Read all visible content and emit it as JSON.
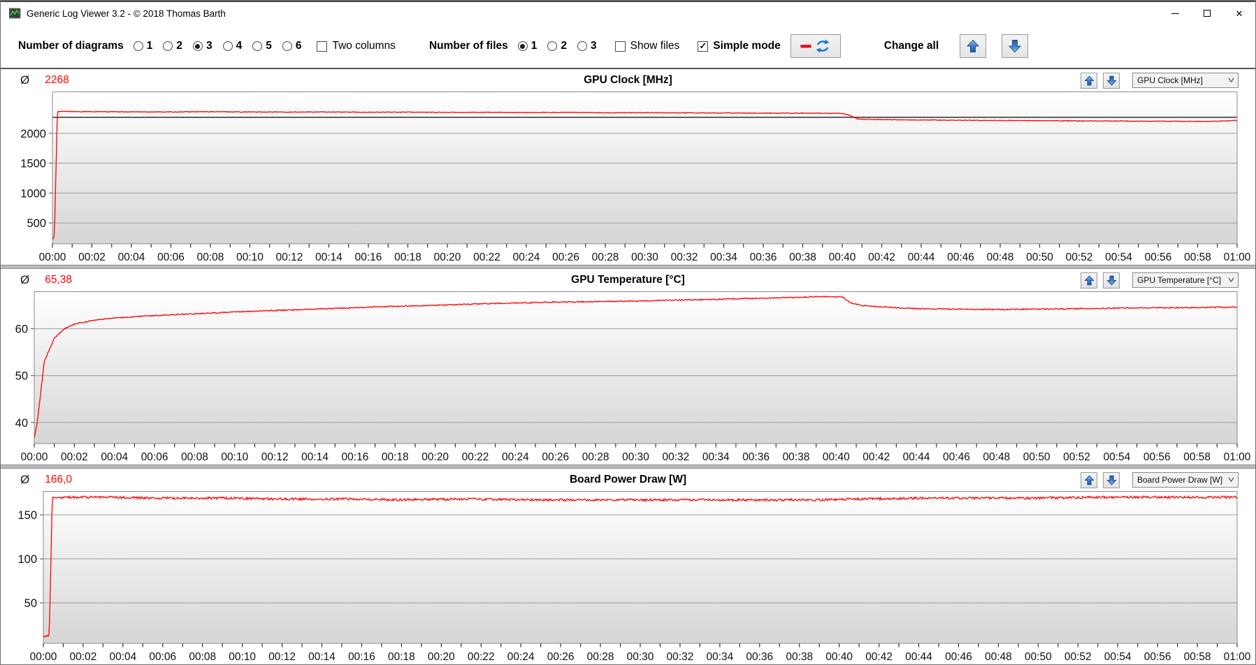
{
  "window": {
    "title": "Generic Log Viewer 3.2 - © 2018 Thomas Barth",
    "close_glyph": "✕"
  },
  "toolbar": {
    "diagrams_label": "Number of diagrams",
    "diagram_options": [
      "1",
      "2",
      "3",
      "4",
      "5",
      "6"
    ],
    "diagrams_selected": "3",
    "two_columns_label": "Two columns",
    "two_columns_checked": false,
    "files_label": "Number of files",
    "file_options": [
      "1",
      "2",
      "3"
    ],
    "files_selected": "1",
    "show_files_label": "Show files",
    "show_files_checked": false,
    "simple_mode_label": "Simple mode",
    "simple_mode_checked": true,
    "check_glyph": "✓",
    "change_all_label": "Change all"
  },
  "colors": {
    "series_red": "#fe0000",
    "avg_text_red": "#fe0000",
    "arrow_blue": "#3a7fd5",
    "grid_gray": "#9a9a9a"
  },
  "panels": [
    {
      "avg_symbol": "Ø",
      "average": "2268",
      "selector": "GPU Clock [MHz]"
    },
    {
      "avg_symbol": "Ø",
      "average": "65,38",
      "selector": "GPU Temperature [°C]"
    },
    {
      "avg_symbol": "Ø",
      "average": "166,0",
      "selector": "Board Power Draw [W]"
    }
  ],
  "chart_data": [
    {
      "type": "line",
      "title": "GPU Clock [MHz]",
      "ylabel": "MHz",
      "ylim": [
        150,
        2700
      ],
      "yticks": [
        500,
        1000,
        1500,
        2000
      ],
      "average_value": 2268,
      "avg_line": 2268,
      "noise": 6,
      "x_range_minutes": [
        0,
        60
      ],
      "x_tick_step_min": 1,
      "x_label_step_min": 2,
      "x_labels": [
        "00:00",
        "00:02",
        "00:04",
        "00:06",
        "00:08",
        "00:10",
        "00:12",
        "00:14",
        "00:16",
        "00:18",
        "00:20",
        "00:22",
        "00:24",
        "00:26",
        "00:28",
        "00:30",
        "00:32",
        "00:34",
        "00:36",
        "00:38",
        "00:40",
        "00:42",
        "00:44",
        "00:46",
        "00:48",
        "00:50",
        "00:52",
        "00:54",
        "00:56",
        "00:58",
        "01:00"
      ],
      "series": [
        {
          "name": "GPU Clock",
          "color": "#fe0000",
          "points": [
            [
              0,
              230
            ],
            [
              0.1,
              260
            ],
            [
              0.25,
              2368
            ],
            [
              2,
              2362
            ],
            [
              4,
              2360
            ],
            [
              6,
              2358
            ],
            [
              8,
              2362
            ],
            [
              10,
              2358
            ],
            [
              12,
              2355
            ],
            [
              14,
              2358
            ],
            [
              16,
              2352
            ],
            [
              18,
              2355
            ],
            [
              20,
              2350
            ],
            [
              22,
              2352
            ],
            [
              24,
              2348
            ],
            [
              26,
              2350
            ],
            [
              28,
              2345
            ],
            [
              30,
              2346
            ],
            [
              32,
              2342
            ],
            [
              34,
              2340
            ],
            [
              36,
              2338
            ],
            [
              38,
              2338
            ],
            [
              40,
              2334
            ],
            [
              40.4,
              2300
            ],
            [
              40.8,
              2238
            ],
            [
              42,
              2228
            ],
            [
              44,
              2222
            ],
            [
              46,
              2218
            ],
            [
              48,
              2214
            ],
            [
              50,
              2212
            ],
            [
              52,
              2208
            ],
            [
              54,
              2205
            ],
            [
              56,
              2202
            ],
            [
              58,
              2200
            ],
            [
              59,
              2202
            ],
            [
              59.8,
              2212
            ],
            [
              60,
              2215
            ]
          ]
        }
      ]
    },
    {
      "type": "line",
      "title": "GPU Temperature [°C]",
      "ylabel": "°C",
      "ylim": [
        35.5,
        68
      ],
      "yticks": [
        40,
        50,
        60
      ],
      "average_value": 65.38,
      "avg_line": null,
      "noise": 0.12,
      "x_range_minutes": [
        0,
        60
      ],
      "x_tick_step_min": 1,
      "x_label_step_min": 2,
      "x_labels": [
        "00:00",
        "00:02",
        "00:04",
        "00:06",
        "00:08",
        "00:10",
        "00:12",
        "00:14",
        "00:16",
        "00:18",
        "00:20",
        "00:22",
        "00:24",
        "00:26",
        "00:28",
        "00:30",
        "00:32",
        "00:34",
        "00:36",
        "00:38",
        "00:40",
        "00:42",
        "00:44",
        "00:46",
        "00:48",
        "00:50",
        "00:52",
        "00:54",
        "00:56",
        "00:58",
        "01:00"
      ],
      "series": [
        {
          "name": "GPU Temperature",
          "color": "#fe0000",
          "points": [
            [
              0,
              36.6
            ],
            [
              0.15,
              40
            ],
            [
              0.5,
              53
            ],
            [
              1,
              58
            ],
            [
              1.5,
              60
            ],
            [
              2,
              61
            ],
            [
              3,
              61.8
            ],
            [
              4,
              62.3
            ],
            [
              6,
              62.8
            ],
            [
              8,
              63.2
            ],
            [
              10,
              63.6
            ],
            [
              12,
              63.9
            ],
            [
              14,
              64.2
            ],
            [
              16,
              64.5
            ],
            [
              18,
              64.8
            ],
            [
              20,
              65
            ],
            [
              22,
              65.3
            ],
            [
              24,
              65.5
            ],
            [
              26,
              65.7
            ],
            [
              28,
              65.8
            ],
            [
              30,
              65.9
            ],
            [
              32,
              66.1
            ],
            [
              34,
              66.3
            ],
            [
              36,
              66.5
            ],
            [
              38,
              66.7
            ],
            [
              39.5,
              66.9
            ],
            [
              40.3,
              66.8
            ],
            [
              40.7,
              65.6
            ],
            [
              41.2,
              65
            ],
            [
              42,
              64.7
            ],
            [
              43,
              64.5
            ],
            [
              44,
              64.3
            ],
            [
              46,
              64.2
            ],
            [
              48,
              64.1
            ],
            [
              50,
              64.2
            ],
            [
              52,
              64.3
            ],
            [
              54,
              64.4
            ],
            [
              56,
              64.5
            ],
            [
              58,
              64.5
            ],
            [
              59,
              64.6
            ],
            [
              60,
              64.6
            ]
          ]
        }
      ]
    },
    {
      "type": "line",
      "title": "Board Power Draw [W]",
      "ylabel": "W",
      "ylim": [
        4,
        177
      ],
      "yticks": [
        50,
        100,
        150
      ],
      "average_value": 166.0,
      "avg_line": null,
      "noise": 1.3,
      "x_range_minutes": [
        0,
        60
      ],
      "x_tick_step_min": 1,
      "x_label_step_min": 2,
      "x_labels": [
        "00:00",
        "00:02",
        "00:04",
        "00:06",
        "00:08",
        "00:10",
        "00:12",
        "00:14",
        "00:16",
        "00:18",
        "00:20",
        "00:22",
        "00:24",
        "00:26",
        "00:28",
        "00:30",
        "00:32",
        "00:34",
        "00:36",
        "00:38",
        "00:40",
        "00:42",
        "00:44",
        "00:46",
        "00:48",
        "00:50",
        "00:52",
        "00:54",
        "00:56",
        "00:58",
        "01:00"
      ],
      "series": [
        {
          "name": "Board Power Draw",
          "color": "#fe0000",
          "points": [
            [
              0,
              12
            ],
            [
              0.3,
              13
            ],
            [
              0.45,
              170
            ],
            [
              3,
              170
            ],
            [
              6,
              169
            ],
            [
              9,
              169
            ],
            [
              12,
              168
            ],
            [
              15,
              168
            ],
            [
              18,
              167
            ],
            [
              21,
              168
            ],
            [
              24,
              167
            ],
            [
              27,
              167
            ],
            [
              30,
              167
            ],
            [
              33,
              167
            ],
            [
              36,
              167
            ],
            [
              39,
              167
            ],
            [
              41,
              168
            ],
            [
              44,
              169
            ],
            [
              47,
              169
            ],
            [
              50,
              169
            ],
            [
              53,
              170
            ],
            [
              56,
              170
            ],
            [
              60,
              170
            ]
          ]
        }
      ]
    }
  ]
}
